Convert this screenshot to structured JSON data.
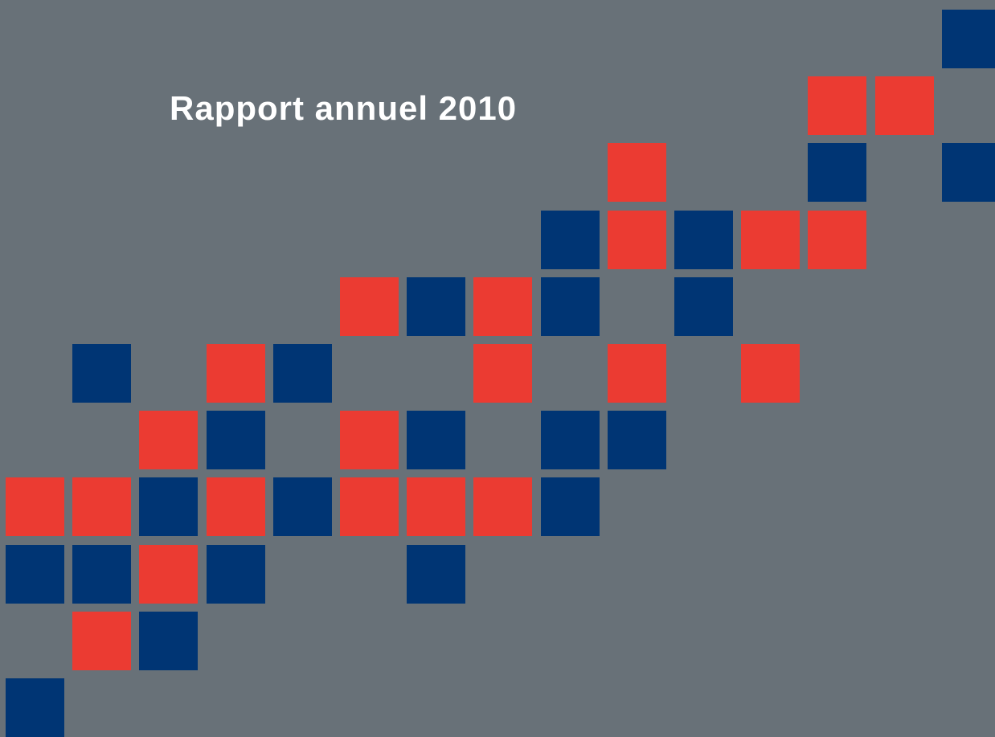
{
  "cover": {
    "title": "Rapport annuel 2010"
  },
  "colors": {
    "background": "#687178",
    "red": "#eb3b32",
    "blue": "#003574",
    "title": "#ffffff"
  },
  "mosaic": {
    "rows": [
      "..............b",
      "............rr.",
      ".........r..b.b",
      "........brbrr..",
      ".....rbrb.b....",
      ".b.rb..r.r.r...",
      "..rb.rb.bb.....",
      "rrbrbrrrb......",
      "bbrb..b........",
      ".rb............",
      "b.............."
    ]
  }
}
